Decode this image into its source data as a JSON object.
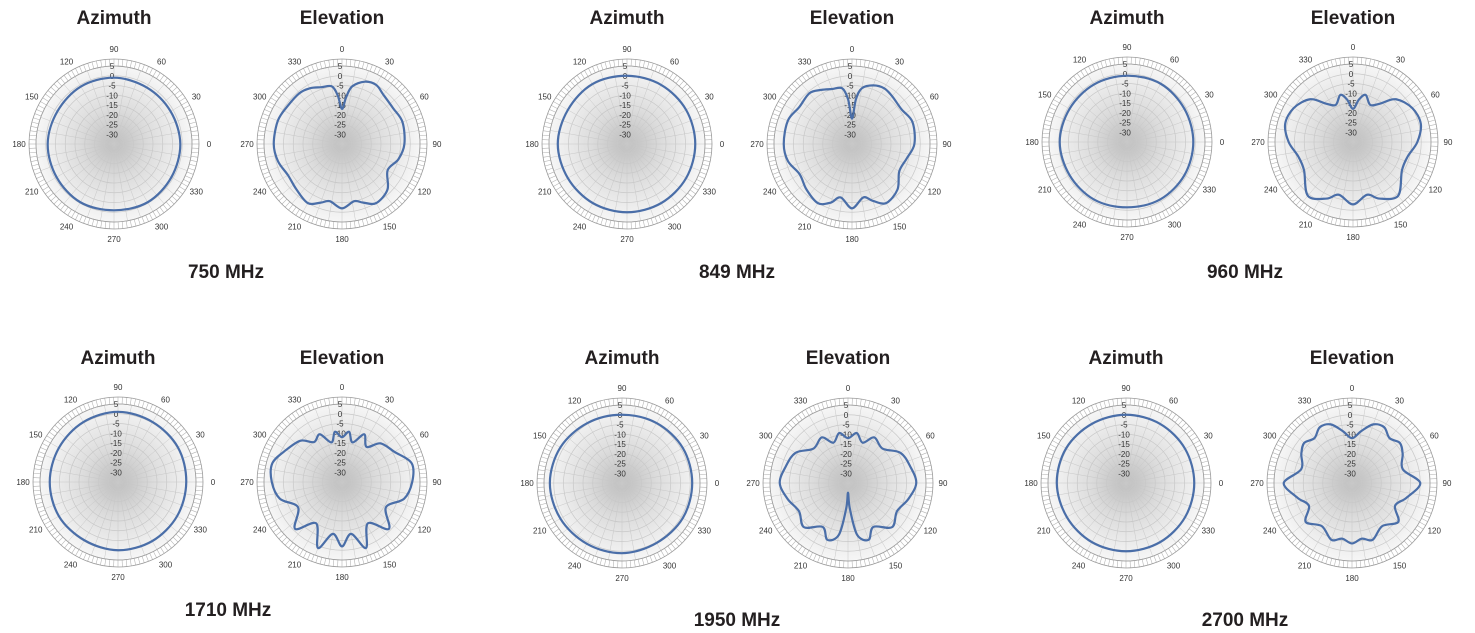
{
  "colors": {
    "trace": "#4a6ea8",
    "grid": "#c8c8c8",
    "center": "#d4d4d4"
  },
  "chart_data": [
    {
      "frequency_label": "750 MHz",
      "plots": [
        {
          "type": "polar",
          "title": "Azimuth",
          "r_ticks": [
            5,
            0,
            -5,
            -10,
            -15,
            -20,
            -25,
            -30
          ],
          "rlim": [
            -35,
            5
          ],
          "angle_ticks": [
            0,
            30,
            60,
            90,
            120,
            150,
            180,
            210,
            240,
            270,
            300,
            330
          ],
          "orientation": "azimuth",
          "series": [
            {
              "angles": [
                0,
                30,
                60,
                90,
                120,
                150,
                180,
                210,
                240,
                270,
                300,
                330,
                360
              ],
              "values": [
                -1,
                -1.5,
                -1.5,
                -1,
                -1,
                -1.5,
                -1,
                -1,
                -0.5,
                -1,
                -0.5,
                -1,
                -1
              ]
            }
          ]
        },
        {
          "type": "polar",
          "title": "Elevation",
          "r_ticks": [
            5,
            0,
            -5,
            -10,
            -15,
            -20,
            -25,
            -30
          ],
          "rlim": [
            -35,
            5
          ],
          "angle_ticks": [
            0,
            30,
            60,
            90,
            120,
            150,
            180,
            210,
            240,
            270,
            300,
            330
          ],
          "orientation": "elevation",
          "series": [
            {
              "angles": [
                0,
                5,
                10,
                20,
                30,
                40,
                55,
                70,
                90,
                105,
                120,
                135,
                150,
                160,
                168,
                180,
                192,
                200,
                210,
                225,
                240,
                255,
                270,
                290,
                305,
                320,
                330,
                340,
                350,
                355,
                360
              ],
              "values": [
                -17,
                -11,
                -5,
                -1,
                0,
                -2,
                -3,
                -2,
                -3,
                -5,
                -8,
                -2,
                0,
                -3,
                -5,
                -2,
                -5,
                -3,
                0,
                -2,
                -3,
                -1,
                0,
                0,
                -1,
                -1,
                -2,
                -4,
                -5,
                -10,
                -17
              ]
            }
          ]
        }
      ]
    },
    {
      "frequency_label": "849 MHz",
      "plots": [
        {
          "type": "polar",
          "title": "Azimuth",
          "r_ticks": [
            5,
            0,
            -5,
            -10,
            -15,
            -20,
            -25,
            -30
          ],
          "rlim": [
            -35,
            5
          ],
          "angle_ticks": [
            0,
            30,
            60,
            90,
            120,
            150,
            180,
            210,
            240,
            270,
            300,
            330
          ],
          "orientation": "azimuth",
          "series": [
            {
              "angles": [
                0,
                30,
                60,
                90,
                120,
                150,
                180,
                210,
                240,
                270,
                300,
                330,
                360
              ],
              "values": [
                0,
                0,
                0,
                0,
                0.5,
                0,
                0.5,
                0,
                0,
                0,
                0,
                0,
                0
              ]
            }
          ]
        },
        {
          "type": "polar",
          "title": "Elevation",
          "r_ticks": [
            5,
            0,
            -5,
            -10,
            -15,
            -20,
            -25,
            -30
          ],
          "rlim": [
            -35,
            5
          ],
          "angle_ticks": [
            0,
            30,
            60,
            90,
            120,
            150,
            180,
            210,
            240,
            270,
            300,
            330
          ],
          "orientation": "elevation",
          "series": [
            {
              "angles": [
                0,
                5,
                10,
                20,
                30,
                40,
                55,
                70,
                90,
                105,
                120,
                135,
                150,
                160,
                168,
                180,
                192,
                200,
                210,
                225,
                240,
                255,
                270,
                290,
                305,
                320,
                330,
                340,
                350,
                355,
                360
              ],
              "values": [
                -22,
                -12,
                -6,
                -3,
                -2,
                -3,
                -4,
                -2,
                -3,
                -6,
                -7,
                -2,
                0,
                -4,
                -7,
                -2,
                -7,
                -3,
                0,
                -2,
                -4,
                -1,
                0,
                0,
                -2,
                -1,
                -3,
                -5,
                -6,
                -12,
                -22
              ]
            }
          ]
        }
      ]
    },
    {
      "frequency_label": "960 MHz",
      "plots": [
        {
          "type": "polar",
          "title": "Azimuth",
          "r_ticks": [
            5,
            0,
            -5,
            -10,
            -15,
            -20,
            -25,
            -30
          ],
          "rlim": [
            -35,
            5
          ],
          "angle_ticks": [
            0,
            30,
            60,
            90,
            120,
            150,
            180,
            210,
            240,
            270,
            300,
            330
          ],
          "orientation": "azimuth",
          "series": [
            {
              "angles": [
                0,
                30,
                60,
                90,
                120,
                150,
                180,
                210,
                240,
                270,
                300,
                330,
                360
              ],
              "values": [
                -1,
                -1,
                -0.5,
                -1,
                -1,
                -1,
                -0.5,
                -1,
                -1,
                -1.5,
                -1,
                -1,
                -1
              ]
            }
          ]
        },
        {
          "type": "polar",
          "title": "Elevation",
          "r_ticks": [
            5,
            0,
            -5,
            -10,
            -15,
            -20,
            -25,
            -30
          ],
          "rlim": [
            -35,
            5
          ],
          "angle_ticks": [
            0,
            30,
            60,
            90,
            120,
            150,
            180,
            210,
            240,
            270,
            300,
            330
          ],
          "orientation": "elevation",
          "series": [
            {
              "angles": [
                0,
                8,
                15,
                25,
                35,
                45,
                60,
                75,
                90,
                105,
                120,
                140,
                155,
                165,
                180,
                195,
                205,
                220,
                240,
                255,
                270,
                285,
                300,
                315,
                325,
                335,
                345,
                352,
                360
              ],
              "values": [
                -18,
                -13,
                -10,
                -14,
                -11,
                -4,
                0,
                1,
                -2,
                -6,
                -6,
                1,
                -3,
                -7,
                -3,
                -7,
                -3,
                1,
                -6,
                -6,
                -2,
                1,
                0,
                -4,
                -11,
                -14,
                -10,
                -13,
                -18
              ]
            }
          ]
        }
      ]
    },
    {
      "frequency_label": "1710 MHz",
      "plots": [
        {
          "type": "polar",
          "title": "Azimuth",
          "r_ticks": [
            5,
            0,
            -5,
            -10,
            -15,
            -20,
            -25,
            -30
          ],
          "rlim": [
            -35,
            5
          ],
          "angle_ticks": [
            0,
            30,
            60,
            90,
            120,
            150,
            180,
            210,
            240,
            270,
            300,
            330
          ],
          "orientation": "azimuth",
          "series": [
            {
              "angles": [
                0,
                30,
                60,
                90,
                120,
                150,
                180,
                210,
                240,
                270,
                300,
                330,
                360
              ],
              "values": [
                0,
                0.5,
                0.5,
                1,
                0.5,
                0,
                0,
                0,
                -0.5,
                0,
                0,
                0,
                0
              ]
            }
          ]
        },
        {
          "type": "polar",
          "title": "Elevation",
          "r_ticks": [
            5,
            0,
            -5,
            -10,
            -15,
            -20,
            -25,
            -30
          ],
          "rlim": [
            -35,
            5
          ],
          "angle_ticks": [
            0,
            30,
            60,
            90,
            120,
            150,
            180,
            210,
            240,
            270,
            300,
            330
          ],
          "orientation": "elevation",
          "series": [
            {
              "angles": [
                0,
                8,
                15,
                25,
                35,
                45,
                60,
                75,
                90,
                105,
                120,
                135,
                148,
                160,
                170,
                180,
                190,
                200,
                212,
                225,
                240,
                255,
                270,
                285,
                300,
                315,
                325,
                335,
                345,
                352,
                360
              ],
              "values": [
                -12,
                -9,
                -14,
                -8,
                -13,
                -7,
                -4,
                2,
                1,
                -2,
                -9,
                -1,
                -10,
                1,
                -8,
                -2,
                -8,
                1,
                -10,
                -1,
                -9,
                -2,
                1,
                2,
                -2,
                -5,
                -10,
                -8,
                -14,
                -9,
                -12
              ]
            }
          ]
        }
      ]
    },
    {
      "frequency_label": "1950 MHz",
      "plots": [
        {
          "type": "polar",
          "title": "Azimuth",
          "r_ticks": [
            5,
            0,
            -5,
            -10,
            -15,
            -20,
            -25,
            -30
          ],
          "rlim": [
            -35,
            5
          ],
          "angle_ticks": [
            0,
            30,
            60,
            90,
            120,
            150,
            180,
            210,
            240,
            270,
            300,
            330
          ],
          "orientation": "azimuth",
          "series": [
            {
              "angles": [
                0,
                30,
                60,
                90,
                120,
                150,
                180,
                210,
                240,
                270,
                300,
                330,
                360
              ],
              "values": [
                1,
                1,
                0.5,
                0,
                0.5,
                1.5,
                2,
                1.5,
                1,
                1,
                0.5,
                1,
                1
              ]
            }
          ]
        },
        {
          "type": "polar",
          "title": "Elevation",
          "r_ticks": [
            5,
            0,
            -5,
            -10,
            -15,
            -20,
            -25,
            -30
          ],
          "rlim": [
            -35,
            5
          ],
          "angle_ticks": [
            0,
            30,
            60,
            90,
            120,
            150,
            180,
            210,
            240,
            270,
            300,
            330
          ],
          "orientation": "elevation",
          "series": [
            {
              "angles": [
                0,
                10,
                20,
                30,
                45,
                60,
                75,
                90,
                105,
                120,
                135,
                150,
                160,
                170,
                176,
                180,
                184,
                190,
                200,
                210,
                225,
                240,
                255,
                270,
                285,
                300,
                315,
                330,
                340,
                350,
                360
              ],
              "values": [
                -12,
                -9,
                -13,
                -8,
                -10,
                -4,
                -2,
                0,
                -3,
                -6,
                -3,
                -9,
                -4,
                -8,
                -22,
                -30,
                -22,
                -8,
                -4,
                -9,
                -3,
                -6,
                -3,
                0,
                -2,
                -4,
                -10,
                -8,
                -13,
                -9,
                -12
              ]
            }
          ]
        }
      ]
    },
    {
      "frequency_label": "2700 MHz",
      "plots": [
        {
          "type": "polar",
          "title": "Azimuth",
          "r_ticks": [
            5,
            0,
            -5,
            -10,
            -15,
            -20,
            -25,
            -30
          ],
          "rlim": [
            -35,
            5
          ],
          "angle_ticks": [
            0,
            30,
            60,
            90,
            120,
            150,
            180,
            210,
            240,
            270,
            300,
            330
          ],
          "orientation": "azimuth",
          "series": [
            {
              "angles": [
                0,
                30,
                60,
                90,
                120,
                150,
                180,
                210,
                240,
                270,
                300,
                330,
                360
              ],
              "values": [
                0,
                0,
                0,
                0,
                0,
                0.5,
                0.5,
                0,
                0,
                0,
                0,
                0,
                0
              ]
            }
          ]
        },
        {
          "type": "polar",
          "title": "Elevation",
          "r_ticks": [
            5,
            0,
            -5,
            -10,
            -15,
            -20,
            -25,
            -30
          ],
          "rlim": [
            -35,
            5
          ],
          "angle_ticks": [
            0,
            30,
            60,
            90,
            120,
            150,
            180,
            210,
            240,
            270,
            300,
            330
          ],
          "orientation": "elevation",
          "series": [
            {
              "angles": [
                0,
                10,
                20,
                30,
                40,
                50,
                60,
                75,
                90,
                105,
                118,
                130,
                145,
                160,
                170,
                180,
                190,
                200,
                215,
                230,
                242,
                255,
                270,
                285,
                300,
                310,
                320,
                330,
                340,
                350,
                360
              ],
              "values": [
                -12,
                -8,
                -3,
                -2,
                -5,
                -3,
                -5,
                -8,
                0,
                -6,
                -10,
                -4,
                -8,
                -4,
                -6,
                -4,
                -6,
                -4,
                -8,
                -4,
                -10,
                -6,
                0,
                -8,
                -5,
                -3,
                -5,
                -2,
                -3,
                -8,
                -12
              ]
            }
          ]
        }
      ]
    }
  ]
}
